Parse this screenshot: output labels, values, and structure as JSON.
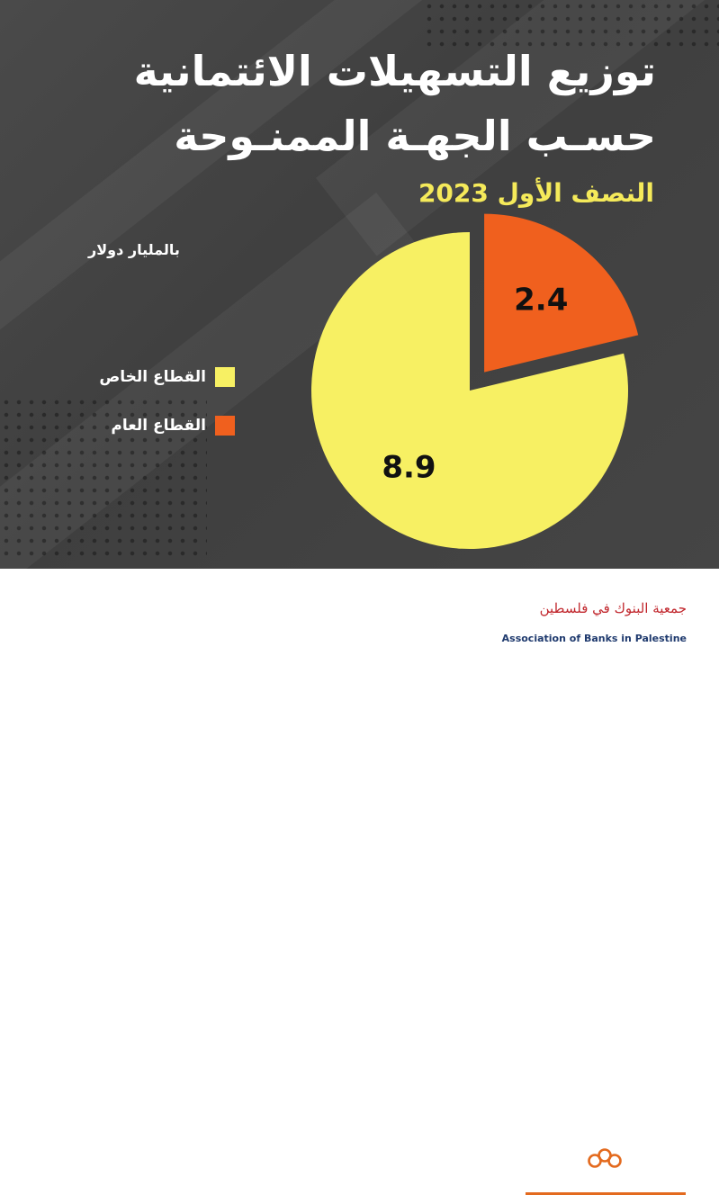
{
  "header": {
    "title_line1": "توزيع التسهيلات الائتمانية",
    "title_line2": "حسـب الجهـة الممنـوحة",
    "period": "النصف الأول 2023",
    "unit": "بالمليار دولار"
  },
  "chart_data": {
    "type": "pie",
    "title": "توزيع التسهيلات الائتمانية حسـب الجهـة الممنـوحة",
    "subtitle": "النصف الأول 2023",
    "unit": "بالمليار دولار",
    "series": [
      {
        "name": "القطاع الخاص",
        "value": 8.9,
        "label": "8.9",
        "color": "#f7f063"
      },
      {
        "name": "القطاع العام",
        "value": 2.4,
        "label": "2.4",
        "color": "#f0601e"
      }
    ],
    "legend_position": "left",
    "exploded": "القطاع العام"
  },
  "footer": {
    "org_name_ar": "جمعية البنوك في فلسطين",
    "org_name_en": "Association of Banks in Palestine",
    "logo_icon": "abp-logo-icon",
    "accent_color": "#e36a1e"
  }
}
